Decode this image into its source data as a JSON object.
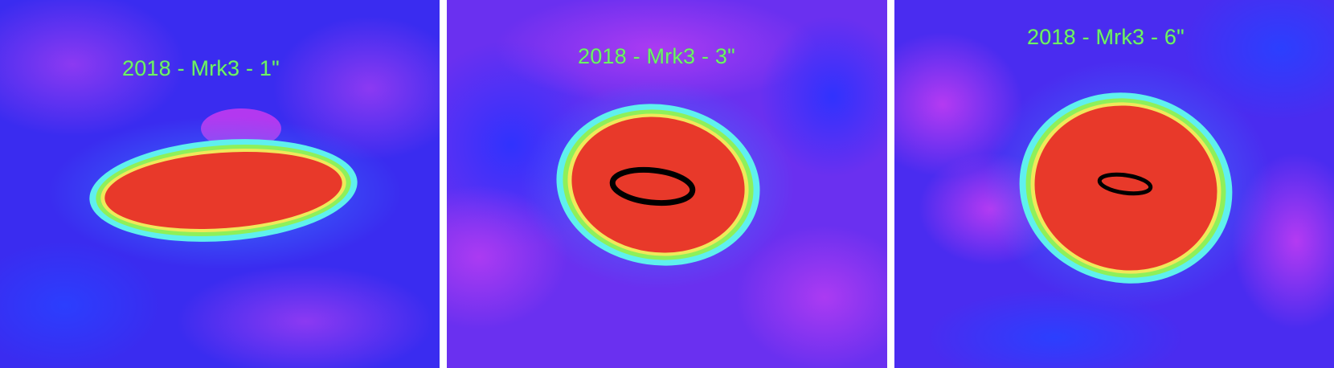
{
  "panels": [
    {
      "label": "2018 - Mrk3 - 1\"",
      "has_contour": false
    },
    {
      "label": "2018 - Mrk3 - 3\"",
      "has_contour": true
    },
    {
      "label": "2018 - Mrk3 - 6\"",
      "has_contour": true
    }
  ],
  "colors": {
    "background_blue": "#3a2cf0",
    "background_violet": "#8a34f0",
    "core_red": "#e8392a",
    "ring_cyan": "#5ff0ee",
    "ring_green": "#8ef05a",
    "ring_yellow": "#f0e85a",
    "label_green": "#6ef06a",
    "contour_black": "#000000",
    "separator": "#ffffff"
  }
}
